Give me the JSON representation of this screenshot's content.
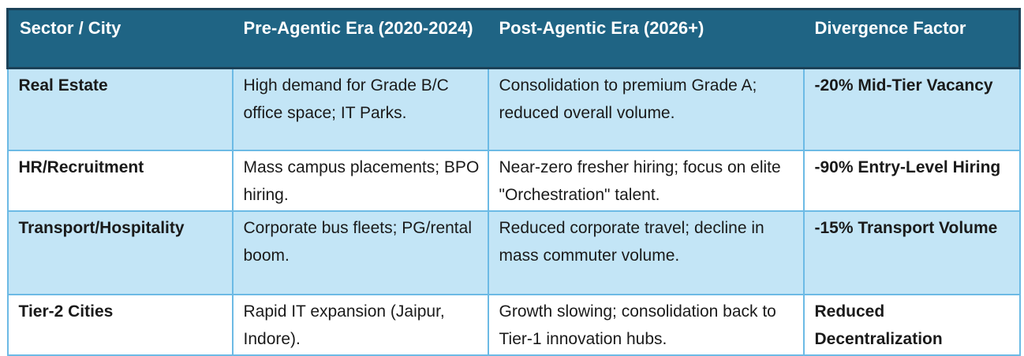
{
  "colors": {
    "header_bg": "#1f6484",
    "header_border": "#1b4158",
    "header_text": "#ffffff",
    "alt_row_bg": "#c3e5f6",
    "plain_row_bg": "#ffffff",
    "cell_border": "#6cbae5",
    "body_text": "#1a1a1a"
  },
  "table": {
    "columns": [
      "Sector / City",
      "Pre-Agentic Era (2020-2024)",
      "Post-Agentic Era (2026+)",
      "Divergence Factor"
    ],
    "rows": [
      {
        "sector": "Real Estate",
        "pre_agentic": "High demand for Grade B/C office space; IT Parks.",
        "post_agentic": "Consolidation to premium Grade A; reduced overall volume.",
        "divergence": "-20% Mid-Tier Vacancy"
      },
      {
        "sector": "HR/Recruitment",
        "pre_agentic": "Mass campus placements; BPO hiring.",
        "post_agentic": "Near-zero fresher hiring; focus on elite \"Orchestration\" talent.",
        "divergence": "-90% Entry-Level Hiring"
      },
      {
        "sector": "Transport/Hospitality",
        "pre_agentic": "Corporate bus fleets; PG/rental boom.",
        "post_agentic": "Reduced corporate travel; decline in mass commuter volume.",
        "divergence": "-15% Transport Volume"
      },
      {
        "sector": "Tier-2 Cities",
        "pre_agentic": "Rapid IT expansion (Jaipur, Indore).",
        "post_agentic": "Growth slowing; consolidation back to Tier-1 innovation hubs.",
        "divergence": "Reduced Decentralization"
      }
    ]
  }
}
